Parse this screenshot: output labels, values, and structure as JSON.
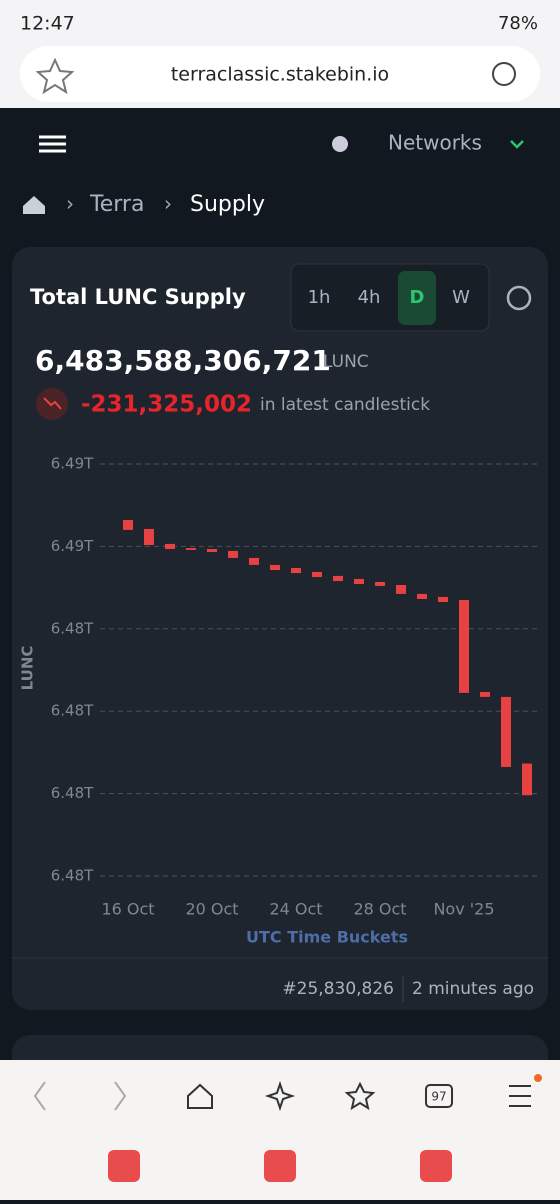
{
  "status_bar": {
    "time": "12:47",
    "battery": "78%"
  },
  "browser": {
    "url": "terraclassic.stakebin.io",
    "tab_count": "97"
  },
  "nav": {
    "networks": "Networks"
  },
  "breadcrumb": [
    "Terra",
    "Supply"
  ],
  "card": {
    "title": "Total LUNC Supply",
    "intervals": [
      "1h",
      "4h",
      "D",
      "W"
    ],
    "total": "6,483,588,306,721",
    "unit": "LUNC",
    "change": "-231,325,002",
    "change_note": "in latest candlestick",
    "block": "#25,830,826",
    "updated": "2 minutes ago"
  },
  "chart_data": {
    "type": "candlestick",
    "y_label": "LUNC",
    "x_label": "UTC Time Buckets",
    "color": "#e84142",
    "grid": true,
    "categories": [
      "16 Oct",
      null,
      null,
      null,
      "20 Oct",
      null,
      null,
      null,
      "24 Oct",
      null,
      null,
      null,
      "28 Oct",
      null,
      null,
      null,
      "Nov '25",
      null,
      null,
      null
    ],
    "open": [
      6.485592,
      6.485527,
      6.485418,
      6.485388,
      6.485381,
      6.485367,
      6.485316,
      6.485265,
      6.485243,
      6.485214,
      6.485185,
      6.485163,
      6.485141,
      6.485119,
      6.485054,
      6.485032,
      6.48501,
      6.48434,
      6.484304,
      6.483819
    ],
    "close": [
      6.48552,
      6.48541,
      6.485381,
      6.485374,
      6.485359,
      6.485316,
      6.485265,
      6.485228,
      6.485206,
      6.485177,
      6.485148,
      6.485126,
      6.485112,
      6.485054,
      6.485017,
      6.484995,
      6.484333,
      6.484304,
      6.483794,
      6.483588
    ],
    "ylim": [
      6.483,
      6.486
    ],
    "yticks": [
      {
        "value": 6.483,
        "label": "6.48T"
      },
      {
        "value": 6.4836,
        "label": "6.48T"
      },
      {
        "value": 6.4842,
        "label": "6.48T"
      },
      {
        "value": 6.4848,
        "label": "6.48T"
      },
      {
        "value": 6.4854,
        "label": "6.49T"
      },
      {
        "value": 6.486,
        "label": "6.49T"
      }
    ]
  }
}
